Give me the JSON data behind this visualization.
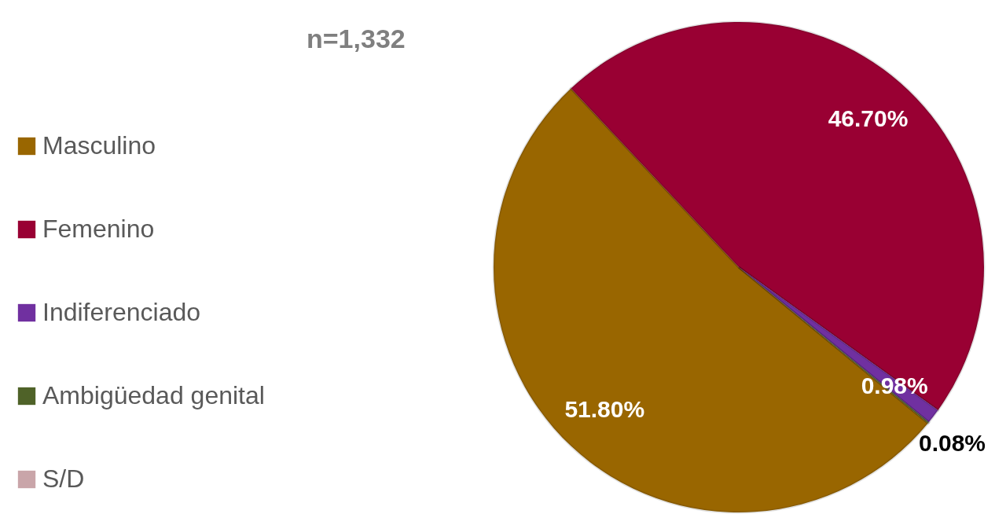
{
  "chart_data": {
    "type": "pie",
    "title": "n=1,332",
    "categories": [
      "Masculino",
      "Femenino",
      "Indiferenciado",
      "Ambigüedad genital",
      "S/D"
    ],
    "values": [
      51.8,
      46.7,
      0.98,
      0.08,
      null
    ],
    "colors": [
      "#996600",
      "#990033",
      "#7030a0",
      "#4f6228",
      "#c9a5a9"
    ],
    "value_labels": [
      "51.80%",
      "46.70%",
      "0.98%",
      "0.08%",
      null
    ],
    "legend": "left"
  }
}
